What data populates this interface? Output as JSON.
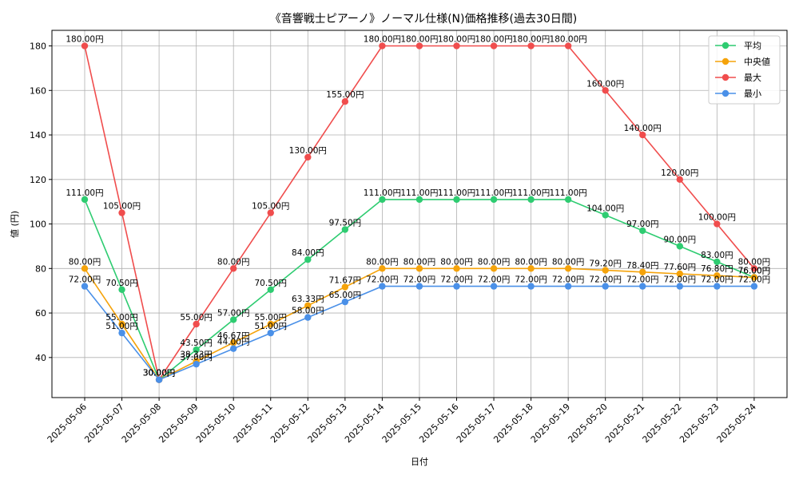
{
  "chart_data": {
    "type": "line",
    "title": "《音響戦士ピアーノ》ノーマル仕様(N)価格推移(過去30日間)",
    "xlabel": "日付",
    "ylabel": "値 (円)",
    "unit": "円",
    "ylim": [
      22,
      187
    ],
    "yticks": [
      40,
      60,
      80,
      100,
      120,
      140,
      160,
      180
    ],
    "grid": true,
    "legend_position": "top-right",
    "categories": [
      "2025-05-06",
      "2025-05-07",
      "2025-05-08",
      "2025-05-09",
      "2025-05-10",
      "2025-05-11",
      "2025-05-12",
      "2025-05-13",
      "2025-05-14",
      "2025-05-15",
      "2025-05-16",
      "2025-05-17",
      "2025-05-18",
      "2025-05-19",
      "2025-05-20",
      "2025-05-21",
      "2025-05-22",
      "2025-05-23",
      "2025-05-24"
    ],
    "series": [
      {
        "name": "平均",
        "color": "#2ecc71",
        "values": [
          111.0,
          70.5,
          30.0,
          43.5,
          57.0,
          70.5,
          84.0,
          97.5,
          111.0,
          111.0,
          111.0,
          111.0,
          111.0,
          111.0,
          104.0,
          97.0,
          90.0,
          83.0,
          76.0
        ]
      },
      {
        "name": "中央値",
        "color": "#f5a30a",
        "values": [
          80.0,
          55.0,
          30.0,
          38.33,
          46.67,
          55.0,
          63.33,
          71.67,
          80.0,
          80.0,
          80.0,
          80.0,
          80.0,
          80.0,
          79.2,
          78.4,
          77.6,
          76.8,
          76.0
        ]
      },
      {
        "name": "最大",
        "color": "#f04d4d",
        "values": [
          180.0,
          105.0,
          30.0,
          55.0,
          80.0,
          105.0,
          130.0,
          155.0,
          180.0,
          180.0,
          180.0,
          180.0,
          180.0,
          180.0,
          160.0,
          140.0,
          120.0,
          100.0,
          80.0
        ]
      },
      {
        "name": "最小",
        "color": "#4a90e8",
        "values": [
          72.0,
          51.0,
          30.0,
          37.0,
          44.0,
          51.0,
          58.0,
          65.0,
          72.0,
          72.0,
          72.0,
          72.0,
          72.0,
          72.0,
          72.0,
          72.0,
          72.0,
          72.0,
          72.0
        ]
      }
    ]
  }
}
